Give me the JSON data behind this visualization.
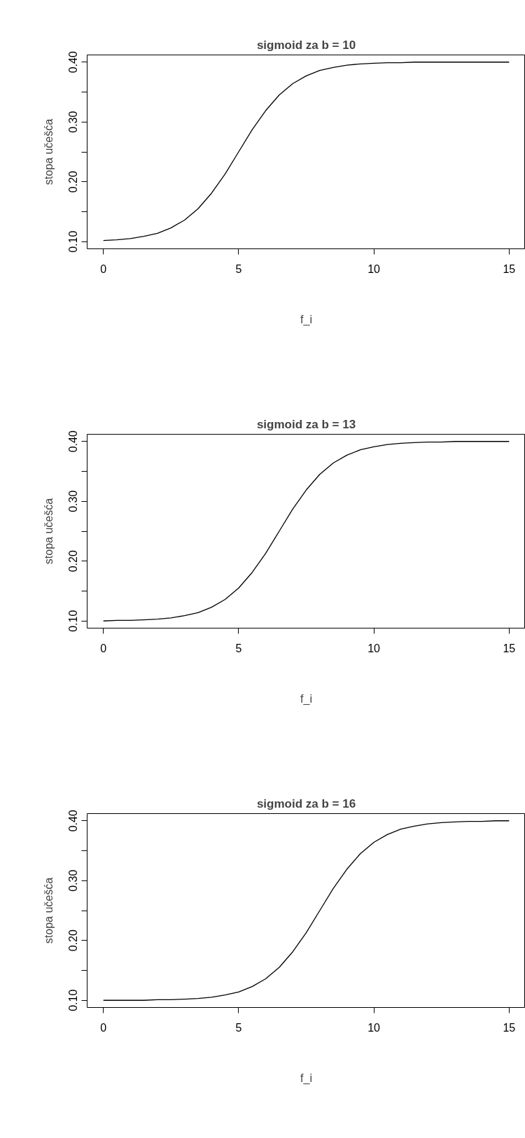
{
  "chart_data": [
    {
      "type": "line",
      "title": "sigmoid za b = 10",
      "xlabel": "f_i",
      "ylabel": "stopa učešća",
      "x": [
        0,
        0.5,
        1,
        1.5,
        2,
        2.5,
        3,
        3.5,
        4,
        4.5,
        5,
        5.5,
        6,
        6.5,
        7,
        7.5,
        8,
        8.5,
        9,
        9.5,
        10,
        10.5,
        11,
        11.5,
        12,
        12.5,
        13,
        13.5,
        14,
        14.5,
        15
      ],
      "series": [
        {
          "color": "#000000",
          "values": [
            0.102,
            0.103,
            0.105,
            0.109,
            0.114,
            0.123,
            0.136,
            0.155,
            0.181,
            0.213,
            0.25,
            0.287,
            0.319,
            0.345,
            0.364,
            0.377,
            0.386,
            0.391,
            0.395,
            0.397,
            0.398,
            0.399,
            0.399,
            0.4,
            0.4,
            0.4,
            0.4,
            0.4,
            0.4,
            0.4,
            0.4
          ]
        }
      ],
      "xlim": [
        -0.6,
        15.6
      ],
      "ylim": [
        0.088,
        0.412
      ],
      "xticks": [
        0,
        5,
        10,
        15
      ],
      "yticks": [
        {
          "value": 0.1,
          "label": "0.10"
        },
        {
          "value": 0.15,
          "label": null
        },
        {
          "value": 0.2,
          "label": "0.20"
        },
        {
          "value": 0.25,
          "label": null
        },
        {
          "value": 0.3,
          "label": "0.30"
        },
        {
          "value": 0.35,
          "label": null
        },
        {
          "value": 0.4,
          "label": "0.40"
        }
      ],
      "grid": false,
      "marker": "none",
      "line_style": "solid"
    },
    {
      "type": "line",
      "title": "sigmoid za b = 13",
      "xlabel": "f_i",
      "ylabel": "stopa učešća",
      "x": [
        0,
        0.5,
        1,
        1.5,
        2,
        2.5,
        3,
        3.5,
        4,
        4.5,
        5,
        5.5,
        6,
        6.5,
        7,
        7.5,
        8,
        8.5,
        9,
        9.5,
        10,
        10.5,
        11,
        11.5,
        12,
        12.5,
        13,
        13.5,
        14,
        14.5,
        15
      ],
      "series": [
        {
          "color": "#000000",
          "values": [
            0.1,
            0.101,
            0.101,
            0.102,
            0.103,
            0.105,
            0.109,
            0.114,
            0.123,
            0.136,
            0.155,
            0.181,
            0.213,
            0.25,
            0.287,
            0.319,
            0.345,
            0.364,
            0.377,
            0.386,
            0.391,
            0.395,
            0.397,
            0.398,
            0.399,
            0.399,
            0.4,
            0.4,
            0.4,
            0.4,
            0.4
          ]
        }
      ],
      "xlim": [
        -0.6,
        15.6
      ],
      "ylim": [
        0.088,
        0.412
      ],
      "xticks": [
        0,
        5,
        10,
        15
      ],
      "yticks": [
        {
          "value": 0.1,
          "label": "0.10"
        },
        {
          "value": 0.15,
          "label": null
        },
        {
          "value": 0.2,
          "label": "0.20"
        },
        {
          "value": 0.25,
          "label": null
        },
        {
          "value": 0.3,
          "label": "0.30"
        },
        {
          "value": 0.35,
          "label": null
        },
        {
          "value": 0.4,
          "label": "0.40"
        }
      ],
      "grid": false,
      "marker": "none",
      "line_style": "solid"
    },
    {
      "type": "line",
      "title": "sigmoid za b = 16",
      "xlabel": "f_i",
      "ylabel": "stopa učešća",
      "x": [
        0,
        0.5,
        1,
        1.5,
        2,
        2.5,
        3,
        3.5,
        4,
        4.5,
        5,
        5.5,
        6,
        6.5,
        7,
        7.5,
        8,
        8.5,
        9,
        9.5,
        10,
        10.5,
        11,
        11.5,
        12,
        12.5,
        13,
        13.5,
        14,
        14.5,
        15
      ],
      "series": [
        {
          "color": "#000000",
          "values": [
            0.1,
            0.1,
            0.1,
            0.1,
            0.101,
            0.101,
            0.102,
            0.103,
            0.105,
            0.109,
            0.114,
            0.123,
            0.136,
            0.155,
            0.181,
            0.213,
            0.25,
            0.287,
            0.319,
            0.345,
            0.364,
            0.377,
            0.386,
            0.391,
            0.395,
            0.397,
            0.398,
            0.399,
            0.399,
            0.4,
            0.4
          ]
        }
      ],
      "xlim": [
        -0.6,
        15.6
      ],
      "ylim": [
        0.088,
        0.412
      ],
      "xticks": [
        0,
        5,
        10,
        15
      ],
      "yticks": [
        {
          "value": 0.1,
          "label": "0.10"
        },
        {
          "value": 0.15,
          "label": null
        },
        {
          "value": 0.2,
          "label": "0.20"
        },
        {
          "value": 0.25,
          "label": null
        },
        {
          "value": 0.3,
          "label": "0.30"
        },
        {
          "value": 0.35,
          "label": null
        },
        {
          "value": 0.4,
          "label": "0.40"
        }
      ],
      "grid": false,
      "marker": "none",
      "line_style": "solid"
    }
  ]
}
